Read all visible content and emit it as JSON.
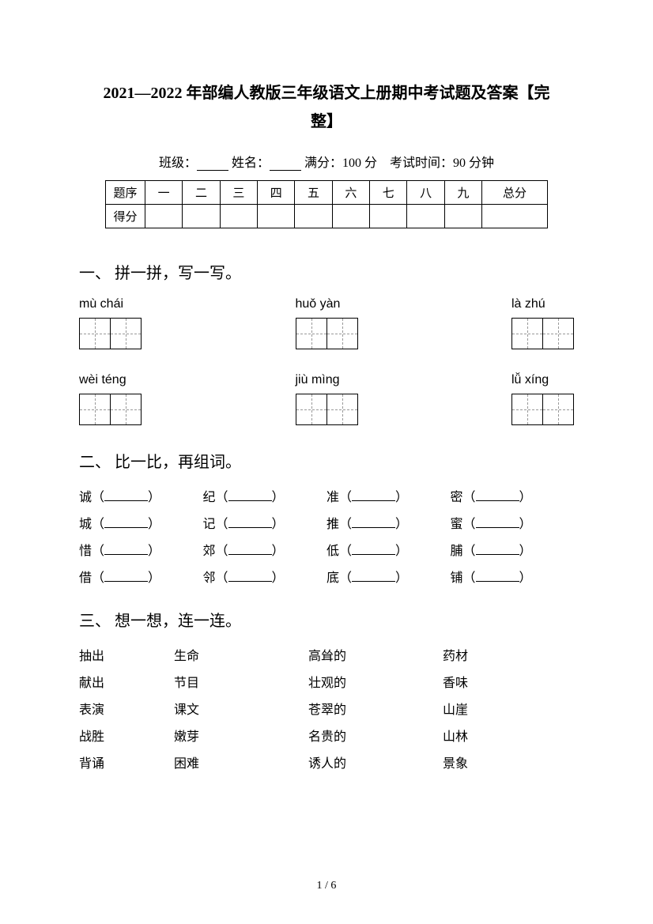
{
  "title_line1": "2021—2022 年部编人教版三年级语文上册期中考试题及答案【完",
  "title_line2": "整】",
  "info": {
    "class_label": "班级：",
    "name_label": "姓名：",
    "full_score_label": "满分：",
    "full_score_value": "100 分",
    "exam_time_label": "考试时间：",
    "exam_time_value": "90 分钟"
  },
  "score_table": {
    "headers": [
      "题序",
      "一",
      "二",
      "三",
      "四",
      "五",
      "六",
      "七",
      "八",
      "九",
      "总分"
    ],
    "score_label": "得分"
  },
  "section1": {
    "title": "一、 拼一拼，写一写。",
    "row1": [
      {
        "pinyin": "mù    chái"
      },
      {
        "pinyin": "huǒ  yàn"
      },
      {
        "pinyin": "là   zhú"
      }
    ],
    "row2": [
      {
        "pinyin": "wèi   téng"
      },
      {
        "pinyin": "jiù  mìng"
      },
      {
        "pinyin": "lǚ  xíng"
      }
    ]
  },
  "section2": {
    "title": "二、 比一比，再组词。",
    "rows": [
      [
        "诚",
        "纪",
        "准",
        "密"
      ],
      [
        "城",
        "记",
        "推",
        "蜜"
      ],
      [
        "惜",
        "郊",
        "低",
        "脯"
      ],
      [
        "借",
        "邻",
        "底",
        "铺"
      ]
    ]
  },
  "section3": {
    "title": "三、 想一想，连一连。",
    "rows": [
      [
        "抽出",
        "生命",
        "高耸的",
        "药材"
      ],
      [
        "献出",
        "节目",
        "壮观的",
        "香味"
      ],
      [
        "表演",
        "课文",
        "苍翠的",
        "山崖"
      ],
      [
        "战胜",
        "嫩芽",
        "名贵的",
        "山林"
      ],
      [
        "背诵",
        "困难",
        "诱人的",
        "景象"
      ]
    ]
  },
  "page_number": "1 / 6"
}
